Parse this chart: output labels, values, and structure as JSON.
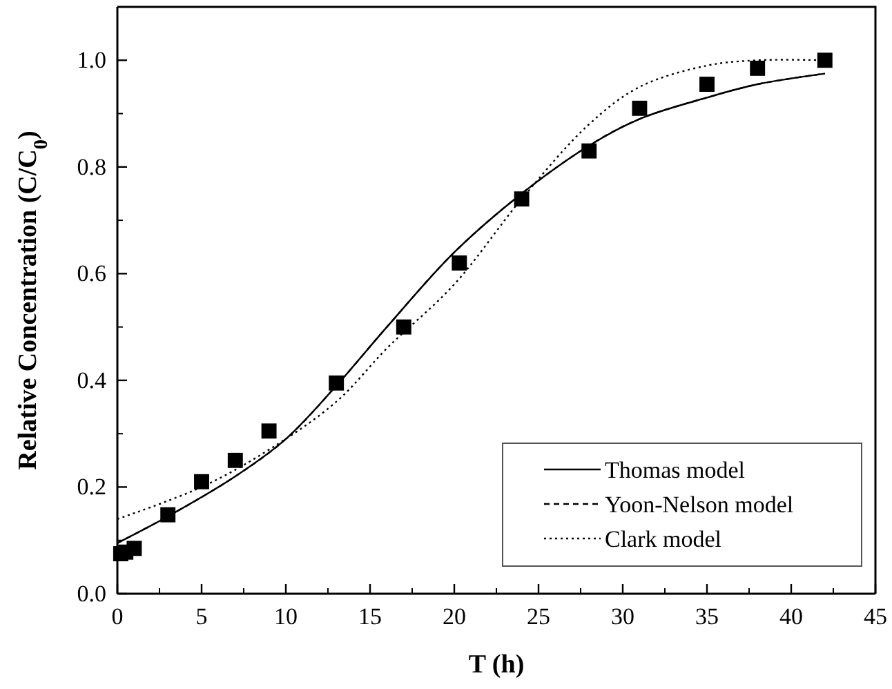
{
  "chart_data": {
    "type": "scatter",
    "xlabel": "T (h)",
    "ylabel": "Relative Concentration (C/C$_{0}$)",
    "xlim": [
      0,
      45
    ],
    "xticks": [
      0,
      5,
      10,
      15,
      20,
      25,
      30,
      35,
      40,
      45
    ],
    "ylim": [
      0,
      1.1
    ],
    "yticks": [
      {
        "value": 0,
        "label": "0.0"
      },
      {
        "value": 0.2,
        "label": "0.2"
      },
      {
        "value": 0.4,
        "label": "0.4"
      },
      {
        "value": 0.6,
        "label": "0.6"
      },
      {
        "value": 0.8,
        "label": "0.8"
      },
      {
        "value": 1,
        "label": "1.0"
      }
    ],
    "grid": false,
    "legend": "bottom right",
    "series": [
      {
        "marker": "square",
        "color": "#000000",
        "x": [
          0.2,
          0.5,
          1,
          3,
          5,
          7,
          9,
          13,
          17,
          20.3,
          24,
          28,
          31,
          35,
          38,
          42
        ],
        "values": [
          0.075,
          0.078,
          0.085,
          0.148,
          0.21,
          0.25,
          0.305,
          0.395,
          0.5,
          0.62,
          0.74,
          0.83,
          0.91,
          0.955,
          0.985,
          1.0
        ]
      },
      {
        "type": "line",
        "name": "Thomas model",
        "line_style": "solid",
        "color": "#000000",
        "x": [
          0,
          3,
          7,
          10,
          13,
          16,
          20,
          24,
          28,
          31,
          35,
          38,
          42
        ],
        "values": [
          0.095,
          0.145,
          0.22,
          0.29,
          0.39,
          0.5,
          0.64,
          0.75,
          0.84,
          0.89,
          0.93,
          0.955,
          0.975
        ]
      },
      {
        "type": "line",
        "name": "Yoon-Nelson model",
        "line_style": "dashed",
        "color": "#000000",
        "x": [
          0,
          3,
          7,
          10,
          13,
          16,
          20,
          24,
          28,
          31,
          35,
          38,
          42
        ],
        "values": [
          0.095,
          0.145,
          0.22,
          0.29,
          0.39,
          0.5,
          0.64,
          0.75,
          0.84,
          0.89,
          0.93,
          0.955,
          0.975
        ]
      },
      {
        "type": "line",
        "name": "Clark model",
        "line_style": "dotted",
        "color": "#000000",
        "x": [
          0,
          5,
          9,
          13,
          16,
          20,
          24,
          28,
          31,
          35,
          38,
          42
        ],
        "values": [
          0.14,
          0.2,
          0.27,
          0.36,
          0.46,
          0.58,
          0.74,
          0.88,
          0.95,
          0.99,
          1.0,
          1.0
        ]
      }
    ]
  }
}
